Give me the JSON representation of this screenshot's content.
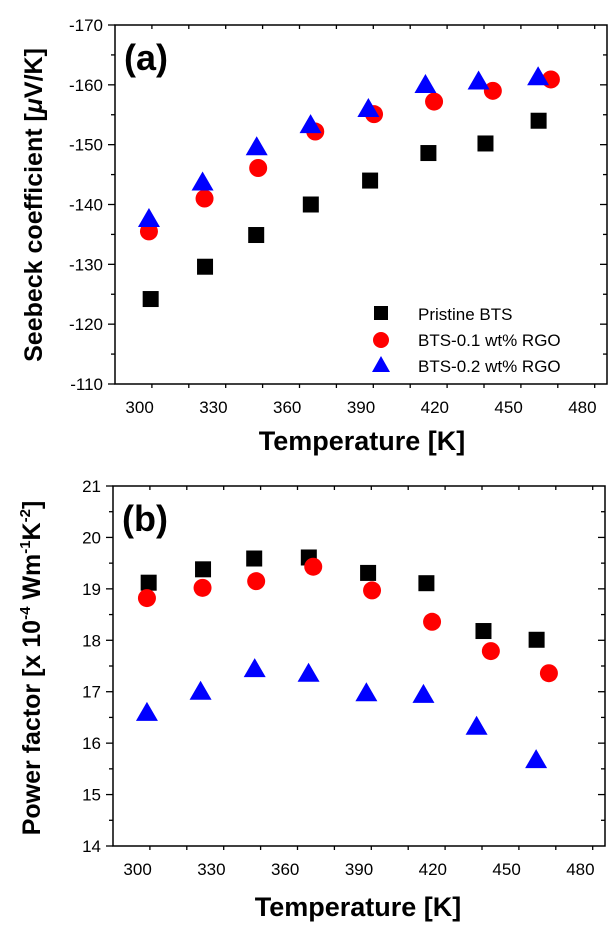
{
  "chart_data": [
    {
      "type": "scatter",
      "panel_label": "(a)",
      "xlabel": "Temperature [K]",
      "ylabel_prefix": "Seebeck coefficient [",
      "ylabel_mu": "μ",
      "ylabel_suffix": "V/K]",
      "xlim": [
        290,
        490
      ],
      "ylim": [
        -110,
        -170
      ],
      "y_inverted": true,
      "xticks": [
        300,
        330,
        360,
        390,
        420,
        450,
        480
      ],
      "yticks": [
        -170,
        -160,
        -150,
        -140,
        -130,
        -120,
        -110
      ],
      "grid": false,
      "legend": {
        "placement": "bottom-right",
        "entries": [
          "Pristine BTS",
          "BTS-0.1 wt% RGO",
          "BTS-0.2 wt% RGO"
        ]
      },
      "series": [
        {
          "name": "Pristine BTS",
          "marker": "square",
          "color": "#000000",
          "x": [
            304.5,
            326.6,
            347.4,
            369.6,
            393.7,
            417.4,
            440.6,
            462.2
          ],
          "y": [
            -124.2,
            -129.6,
            -134.9,
            -140.0,
            -144.0,
            -148.6,
            -150.2,
            -154.0
          ]
        },
        {
          "name": "BTS-0.1 wt% RGO",
          "marker": "circle",
          "color": "#ff0000",
          "x": [
            303.8,
            326.4,
            348.2,
            371.4,
            395.3,
            419.7,
            443.6,
            467.2
          ],
          "y": [
            -135.5,
            -141.0,
            -146.1,
            -152.2,
            -155.1,
            -157.2,
            -159.0,
            -160.9
          ]
        },
        {
          "name": "BTS-0.2 wt% RGO",
          "marker": "triangle",
          "color": "#0000ff",
          "x": [
            303.8,
            325.6,
            347.6,
            369.5,
            393.0,
            416.2,
            437.8,
            462.0
          ],
          "y": [
            -137.4,
            -143.5,
            -149.4,
            -153.1,
            -155.8,
            -159.8,
            -160.4,
            -161.1
          ]
        }
      ]
    },
    {
      "type": "scatter",
      "panel_label": "(b)",
      "xlabel": "Temperature [K]",
      "ylabel_main": "Power factor [x 10",
      "ylabel_exp1": "-4",
      "ylabel_mid": " Wm",
      "ylabel_exp2": "-1",
      "ylabel_k": "K",
      "ylabel_exp3": "-2",
      "ylabel_end": "]",
      "xlim": [
        290,
        490
      ],
      "ylim": [
        14,
        21
      ],
      "y_inverted": false,
      "xticks": [
        300,
        330,
        360,
        390,
        420,
        450,
        480
      ],
      "yticks": [
        14,
        15,
        16,
        17,
        18,
        19,
        20,
        21
      ],
      "grid": false,
      "series": [
        {
          "name": "Pristine BTS",
          "marker": "square",
          "color": "#000000",
          "x": [
            304.5,
            326.6,
            347.4,
            369.6,
            393.7,
            417.4,
            440.6,
            462.2
          ],
          "y": [
            19.12,
            19.38,
            19.59,
            19.61,
            19.31,
            19.11,
            18.18,
            18.01
          ]
        },
        {
          "name": "BTS-0.1 wt% RGO",
          "marker": "circle",
          "color": "#ff0000",
          "x": [
            303.8,
            326.4,
            348.2,
            371.4,
            395.3,
            419.7,
            443.6,
            467.2
          ],
          "y": [
            18.82,
            19.02,
            19.15,
            19.43,
            18.97,
            18.36,
            17.79,
            17.36
          ]
        },
        {
          "name": "BTS-0.2 wt% RGO",
          "marker": "triangle",
          "color": "#0000ff",
          "x": [
            303.8,
            325.6,
            347.6,
            369.5,
            393.0,
            416.2,
            437.8,
            462.0
          ],
          "y": [
            16.57,
            16.98,
            17.42,
            17.33,
            16.95,
            16.92,
            16.3,
            15.65
          ]
        }
      ]
    }
  ]
}
